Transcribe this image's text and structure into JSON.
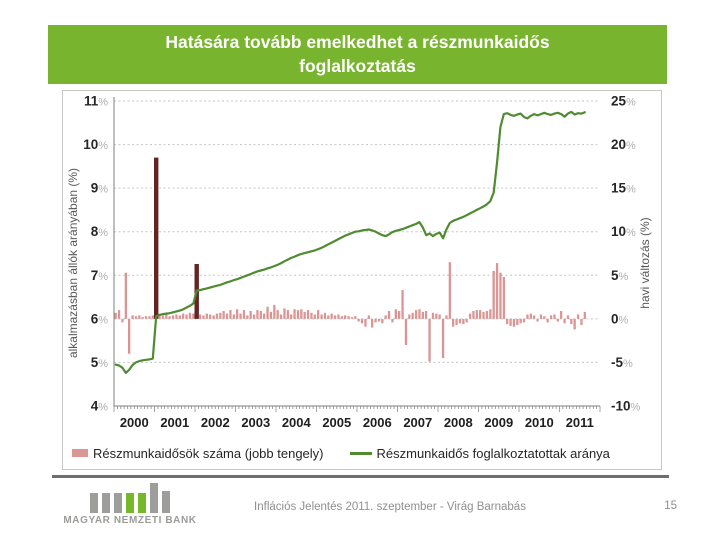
{
  "slide": {
    "title_line1": "Hatására tovább emelkedhet a részmunkaidős",
    "title_line2": "foglalkoztatás",
    "footer_text": "Inflációs Jelentés 2011. szeptember - Virág Barnabás",
    "page_number": "15",
    "logo_text": "MAGYAR NEMZETI BANK"
  },
  "colors": {
    "title_bar_green": "#78b42e",
    "logo_green": "#76b82a",
    "logo_gray": "#9d9d9c",
    "line_green": "#4e8b31",
    "bar_pink": "#d99694",
    "bar_maroon": "#632423",
    "gridline_gray": "#c6c6c6",
    "axis_gray": "#7f7f7f"
  },
  "chart_data": {
    "type": "bar",
    "subtype": "combo bar+line, dual axis, monthly 2000-01 .. 2011-08",
    "grid": "horizontal dashed",
    "legend_position": "bottom",
    "x": {
      "start_year": 2000,
      "months": 140,
      "axis_span_months": 144,
      "year_labels": [
        "2000",
        "2001",
        "2002",
        "2003",
        "2004",
        "2005",
        "2006",
        "2007",
        "2008",
        "2009",
        "2010",
        "2011"
      ]
    },
    "left_axis": {
      "title": "alkalmazásban állók arányában (%)",
      "min": 4,
      "max": 11,
      "tick_step": 1,
      "unit": "%"
    },
    "right_axis": {
      "title": "havi változás (%)",
      "min": -10,
      "max": 25,
      "tick_step": 5,
      "unit": "%"
    },
    "series": [
      {
        "name": "Részmunkaidősök száma (jobb tengely)",
        "type": "bar",
        "axis": "right",
        "color": "#d99694",
        "highlight_color": "#632423",
        "highlight_indices": [
          12,
          24
        ],
        "values": [
          0.7,
          1.0,
          -0.4,
          5.3,
          -4.0,
          0.4,
          0.3,
          0.4,
          0.2,
          0.3,
          0.3,
          0.4,
          18.5,
          0.6,
          0.4,
          0.5,
          0.3,
          0.4,
          0.5,
          0.4,
          0.6,
          0.5,
          0.7,
          0.6,
          6.3,
          0.5,
          0.4,
          0.6,
          0.5,
          0.4,
          0.6,
          0.7,
          0.9,
          0.6,
          1.0,
          0.5,
          1.1,
          0.6,
          1.0,
          0.4,
          0.9,
          0.5,
          1.0,
          0.9,
          0.6,
          1.4,
          0.8,
          1.6,
          1.0,
          0.5,
          1.2,
          1.0,
          0.5,
          1.1,
          1.0,
          1.1,
          0.8,
          1.0,
          0.7,
          0.5,
          1.0,
          0.5,
          0.7,
          0.4,
          0.6,
          0.4,
          0.5,
          0.3,
          0.4,
          0.3,
          0.2,
          0.3,
          -0.3,
          -0.5,
          -0.9,
          0.4,
          -1.0,
          -0.4,
          -0.3,
          -0.5,
          0.4,
          0.9,
          -0.4,
          1.1,
          0.9,
          3.3,
          -3.0,
          0.5,
          0.7,
          1.0,
          1.1,
          0.8,
          0.9,
          -4.9,
          0.7,
          0.6,
          0.5,
          -4.5,
          0.4,
          6.5,
          -0.9,
          -0.7,
          -0.5,
          -0.6,
          -0.4,
          0.6,
          0.9,
          1.0,
          1.0,
          0.8,
          0.9,
          1.1,
          5.5,
          6.4,
          5.3,
          4.8,
          -0.6,
          -0.8,
          -0.9,
          -0.7,
          -0.5,
          -0.4,
          0.5,
          0.6,
          0.4,
          -0.3,
          0.5,
          0.3,
          -0.4,
          0.4,
          0.5,
          -0.3,
          0.9,
          -0.5,
          0.4,
          -0.6,
          -1.2,
          0.5,
          -0.7,
          0.8
        ]
      },
      {
        "name": "Részmunkaidős foglalkoztatottak aránya",
        "type": "line",
        "axis": "left",
        "color": "#4e8b31",
        "values": [
          4.95,
          4.93,
          4.88,
          4.76,
          4.83,
          4.94,
          5.0,
          5.03,
          5.05,
          5.06,
          5.07,
          5.09,
          6.06,
          6.09,
          6.11,
          6.12,
          6.13,
          6.15,
          6.17,
          6.19,
          6.22,
          6.26,
          6.3,
          6.35,
          6.65,
          6.66,
          6.68,
          6.7,
          6.72,
          6.74,
          6.76,
          6.78,
          6.81,
          6.84,
          6.86,
          6.89,
          6.91,
          6.94,
          6.97,
          7.0,
          7.03,
          7.06,
          7.09,
          7.11,
          7.13,
          7.16,
          7.18,
          7.21,
          7.24,
          7.28,
          7.32,
          7.36,
          7.4,
          7.43,
          7.46,
          7.49,
          7.51,
          7.53,
          7.55,
          7.57,
          7.6,
          7.63,
          7.67,
          7.71,
          7.75,
          7.79,
          7.83,
          7.87,
          7.91,
          7.94,
          7.97,
          8.0,
          8.01,
          8.03,
          8.04,
          8.05,
          8.03,
          8.0,
          7.96,
          7.92,
          7.9,
          7.94,
          7.99,
          8.02,
          8.04,
          8.06,
          8.09,
          8.12,
          8.15,
          8.18,
          8.22,
          8.1,
          7.92,
          7.96,
          7.9,
          7.95,
          7.98,
          7.85,
          8.05,
          8.2,
          8.25,
          8.28,
          8.31,
          8.34,
          8.38,
          8.42,
          8.46,
          8.5,
          8.54,
          8.58,
          8.63,
          8.7,
          8.9,
          9.6,
          10.4,
          10.7,
          10.72,
          10.68,
          10.66,
          10.69,
          10.71,
          10.63,
          10.6,
          10.66,
          10.7,
          10.67,
          10.7,
          10.73,
          10.7,
          10.68,
          10.71,
          10.73,
          10.7,
          10.64,
          10.71,
          10.75,
          10.69,
          10.72,
          10.71,
          10.74
        ]
      }
    ]
  }
}
